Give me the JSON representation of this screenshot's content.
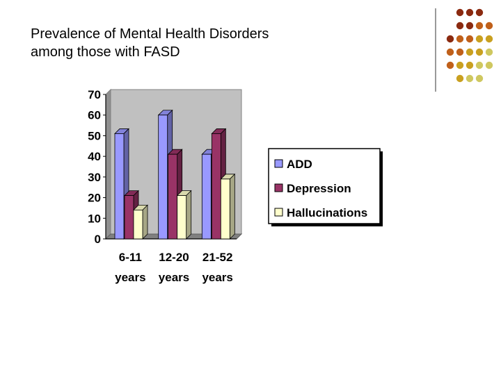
{
  "slide": {
    "title_line1": "Prevalence of Mental Health Disorders",
    "title_line2": "among those with FASD"
  },
  "decoration": {
    "dot_colors": [
      "#8B2A10",
      "#C0601A",
      "#C9A020",
      "#CFC860"
    ]
  },
  "chart_data": {
    "type": "bar",
    "categories": [
      [
        "6-11",
        "years"
      ],
      [
        "12-20",
        "years"
      ],
      [
        "21-52",
        "years"
      ]
    ],
    "series": [
      {
        "name": "ADD",
        "values": [
          51,
          60,
          41
        ],
        "color": "#9999FF"
      },
      {
        "name": "Depression",
        "values": [
          21,
          41,
          51
        ],
        "color": "#993366"
      },
      {
        "name": "Hallucinations",
        "values": [
          14,
          21,
          29
        ],
        "color": "#FFFFCC"
      }
    ],
    "ylim": [
      0,
      70
    ],
    "yticks": [
      "0",
      "10",
      "20",
      "30",
      "40",
      "50",
      "60",
      "70"
    ],
    "grid": false,
    "plot_background": "#C0C0C0",
    "three_d": true,
    "legend_position": "right"
  }
}
